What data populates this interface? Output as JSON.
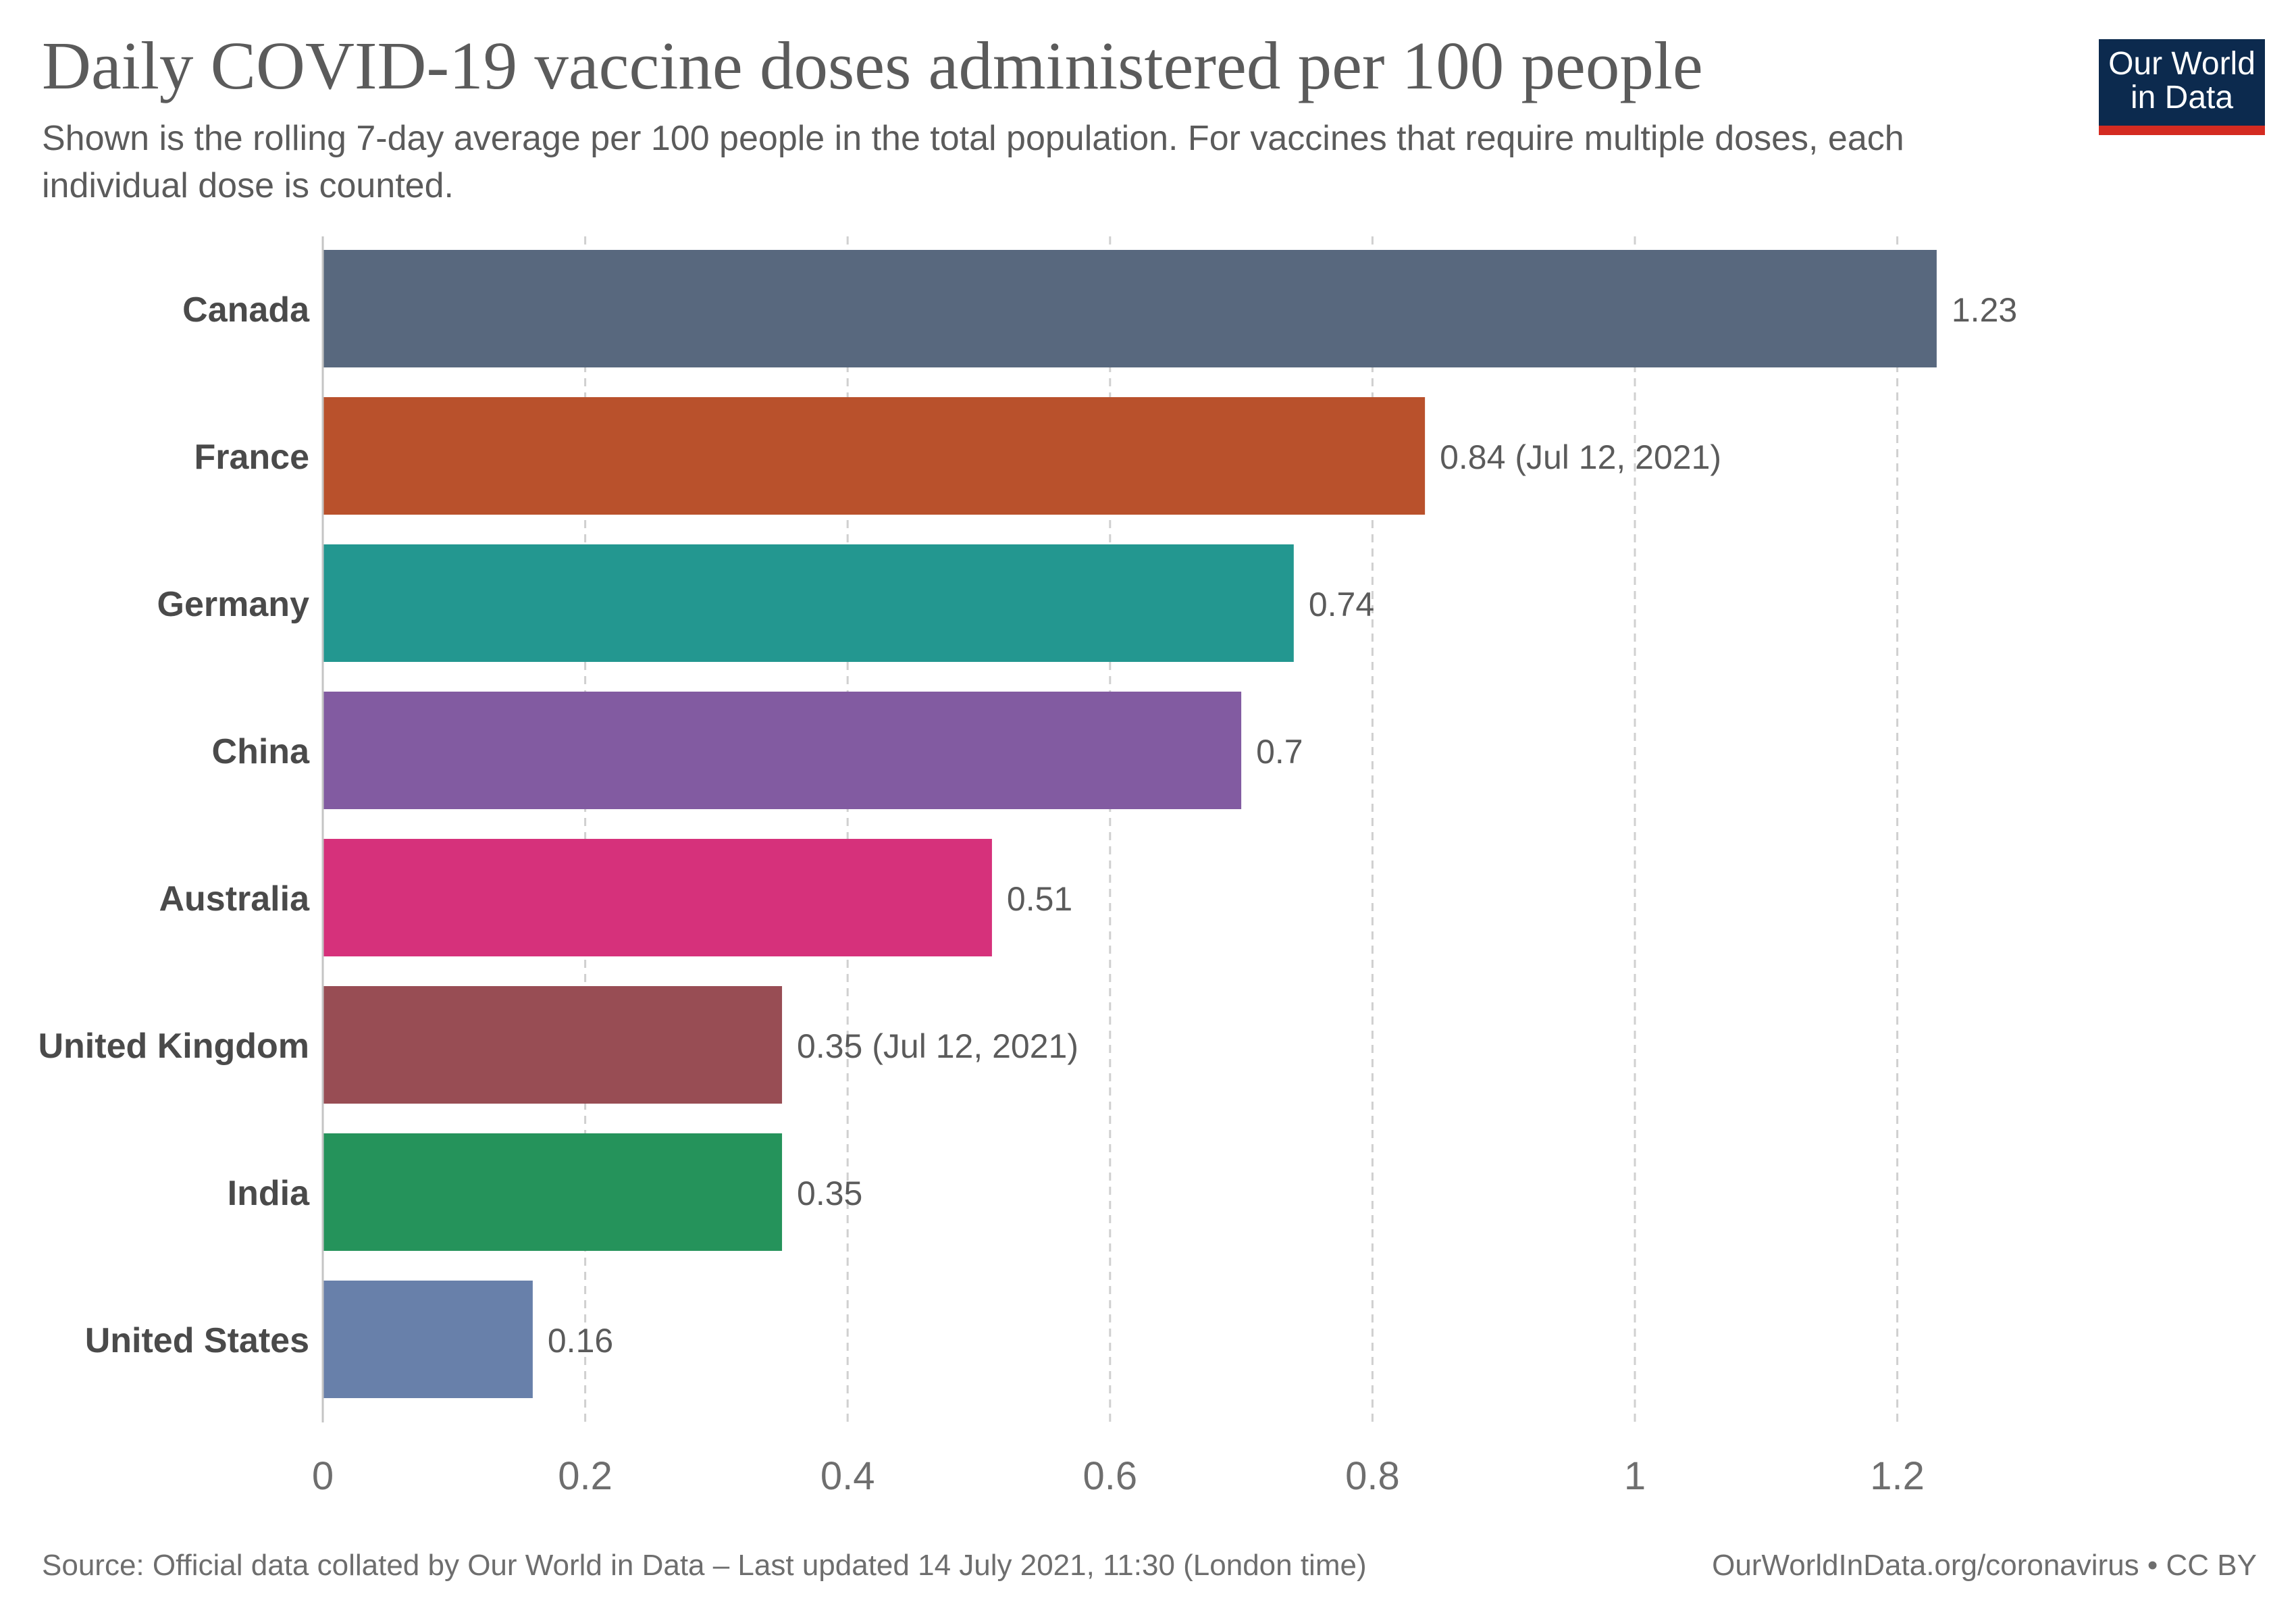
{
  "header": {
    "title": "Daily COVID-19 vaccine doses administered per 100 people",
    "subtitle": "Shown is the rolling 7-day average per 100 people in the total population. For vaccines that require multiple doses, each individual dose is counted."
  },
  "logo": {
    "line1": "Our World",
    "line2": "in Data"
  },
  "footer": {
    "source": "Source: Official data collated by Our World in Data – Last updated 14 July 2021, 11:30 (London time)",
    "link": "OurWorldInData.org/coronavirus • CC BY"
  },
  "chart_data": {
    "type": "bar",
    "orientation": "horizontal",
    "title": "Daily COVID-19 vaccine doses administered per 100 people",
    "xlabel": "",
    "ylabel": "",
    "xlim": [
      0,
      1.23
    ],
    "xticks": [
      0,
      0.2,
      0.4,
      0.6,
      0.8,
      1,
      1.2
    ],
    "xtick_labels": [
      "0",
      "0.2",
      "0.4",
      "0.6",
      "0.8",
      "1",
      "1.2"
    ],
    "grid": "vertical dashed",
    "categories": [
      "Canada",
      "France",
      "Germany",
      "China",
      "Australia",
      "United Kingdom",
      "India",
      "United States"
    ],
    "values": [
      1.23,
      0.84,
      0.74,
      0.7,
      0.51,
      0.35,
      0.35,
      0.16
    ],
    "data_labels": [
      "1.23",
      "0.84 (Jul 12, 2021)",
      "0.74",
      "0.7",
      "0.51",
      "0.35 (Jul 12, 2021)",
      "0.35",
      "0.16"
    ],
    "colors": [
      "#58687e",
      "#b9512c",
      "#239790",
      "#825ba1",
      "#d6317b",
      "#984d54",
      "#25935b",
      "#6880aa"
    ]
  }
}
